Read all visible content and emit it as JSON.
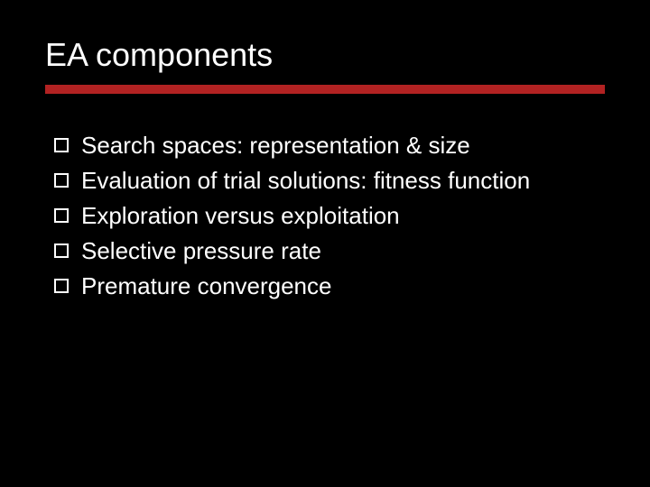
{
  "slide": {
    "title": "EA components",
    "background_color": "#000000",
    "title_color": "#ffffff",
    "title_fontsize": 36,
    "rule_color": "#b22222",
    "rule_height": 10,
    "text_color": "#ffffff",
    "text_fontsize": 26,
    "bullet_box_border": "#ffffff",
    "bullets": [
      "Search spaces: representation & size",
      "Evaluation of trial solutions: fitness function",
      "Exploration versus exploitation",
      "Selective pressure rate",
      "Premature convergence"
    ]
  }
}
